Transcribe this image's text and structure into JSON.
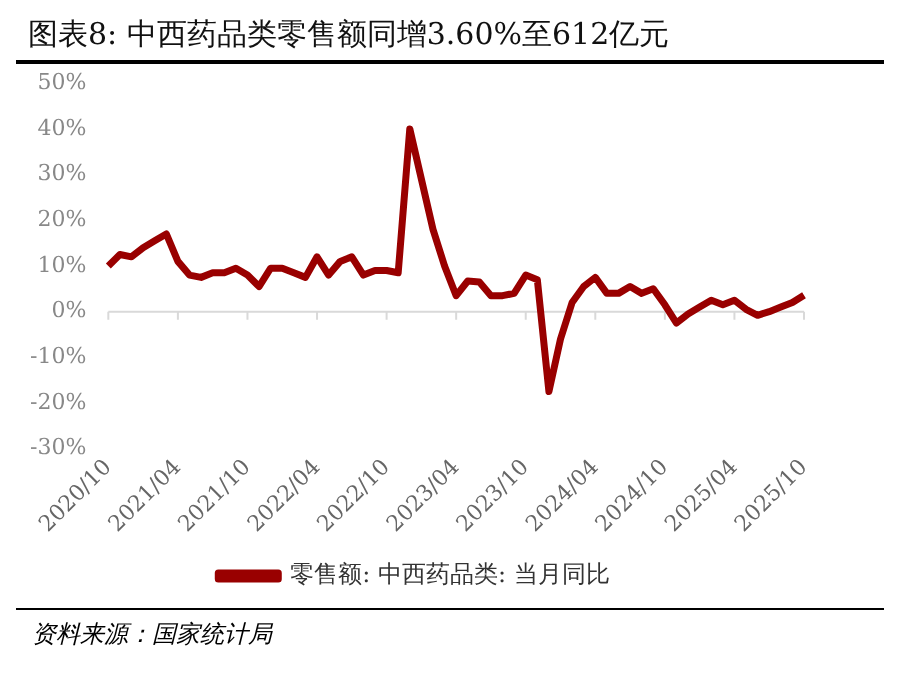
{
  "chart_data": {
    "type": "line",
    "title": "图表8:  中西药品类零售额同增3.60%至612亿元",
    "categories": [
      "2020/10",
      null,
      null,
      null,
      null,
      null,
      "2021/04",
      null,
      null,
      null,
      null,
      null,
      "2021/10",
      null,
      null,
      null,
      null,
      null,
      "2022/04",
      null,
      null,
      null,
      null,
      null,
      "2022/10",
      null,
      null,
      null,
      null,
      null,
      "2023/04",
      null,
      null,
      null,
      null,
      null,
      "2023/10",
      null,
      null,
      null,
      null,
      null,
      "2024/04",
      null,
      null,
      null,
      null,
      null,
      "2024/10",
      null,
      null,
      null,
      null,
      null,
      "2025/04",
      null,
      null,
      null,
      null,
      null,
      "2025/10"
    ],
    "series": [
      {
        "name": "零售额: 中西药品类: 当月同比",
        "color": "#990000",
        "values": [
          10,
          12.5,
          12,
          14,
          15.5,
          17,
          11,
          8,
          7.5,
          8.5,
          8.5,
          9.5,
          8,
          5.5,
          9.5,
          9.5,
          8.5,
          7.5,
          12,
          8,
          11,
          12,
          8,
          9,
          9,
          8.5,
          40,
          29,
          18,
          10,
          3.5,
          6.7,
          6.5,
          3.5,
          3.5,
          4,
          8,
          7,
          -17.5,
          -6,
          2,
          5.5,
          7.5,
          4,
          4,
          5.5,
          4,
          5,
          1.5,
          -2.5,
          -0.5,
          1,
          2.5,
          1.5,
          2.5,
          0.5,
          -0.8,
          0,
          1,
          2,
          3.6
        ]
      }
    ],
    "ylim": [
      -30,
      50
    ],
    "yticks": [
      {
        "value": -30,
        "label": "-30%"
      },
      {
        "value": -20,
        "label": "-20%"
      },
      {
        "value": -10,
        "label": "-10%"
      },
      {
        "value": 0,
        "label": "0%"
      },
      {
        "value": 10,
        "label": "10%"
      },
      {
        "value": 20,
        "label": "20%"
      },
      {
        "value": 30,
        "label": "30%"
      },
      {
        "value": 40,
        "label": "40%"
      },
      {
        "value": 50,
        "label": "50%"
      }
    ],
    "legend": "bottom",
    "marker": "none",
    "line_style": "solid",
    "annotations": [
      "资料来源：国家统计局"
    ]
  }
}
